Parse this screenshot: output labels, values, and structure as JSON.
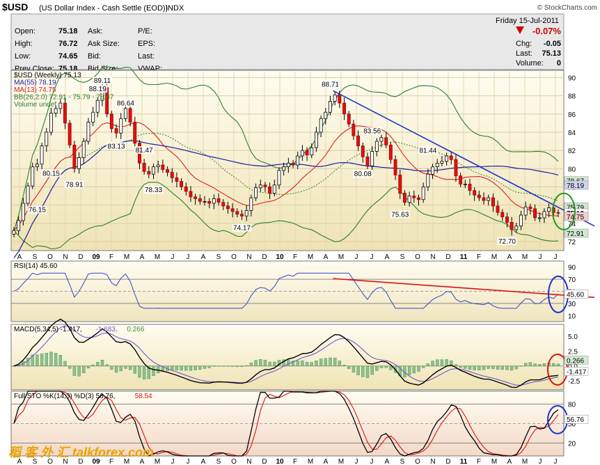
{
  "header": {
    "symbol": "$USD",
    "name": "(US Dollar Index - Cash Settle (EOD))",
    "exchange": "INDX",
    "copyright": "© StockCharts.com",
    "date": "Friday  15-Jul-2011",
    "change_pct": "-0.07%",
    "down_color": "#cc0000"
  },
  "quote": {
    "left": [
      {
        "label": "Open:",
        "value": "75.18"
      },
      {
        "label": "High:",
        "value": "76.72"
      },
      {
        "label": "Low:",
        "value": "74.65"
      },
      {
        "label": "Prev Close:",
        "value": "75.18"
      }
    ],
    "mid": [
      "Ask:",
      "Ask Size:",
      "Bid:",
      "Bid Size:"
    ],
    "right": [
      "P/E:",
      "EPS:",
      "Last:",
      "VWAP:"
    ],
    "far": [
      {
        "label": "Chg:",
        "value": "-0.05"
      },
      {
        "label": "Last:",
        "value": "75.13"
      },
      {
        "label": "Volume:",
        "value": "0"
      }
    ]
  },
  "watermark": "稻 客 外 汇  talkforex.com",
  "chart_data": [
    {
      "type": "candlestick",
      "panel": "price",
      "legend": [
        "$USD (Weekly) 75.13",
        "MA(55) 78.19",
        "MA(13) 74.75",
        "BB(26,2.0) 72.91 - 75.79 - 78.67",
        "Volume undef"
      ],
      "series_colors": {
        "MA(55)": "#1a1aa8",
        "MA(13)": "#dd2020",
        "BB": "#2e7d2e",
        "trendline": "#1a33cc"
      },
      "x_ticks": [
        "A",
        "S",
        "O",
        "N",
        "D",
        "09",
        "F",
        "M",
        "A",
        "M",
        "J",
        "J",
        "A",
        "S",
        "O",
        "N",
        "D",
        "10",
        "F",
        "M",
        "A",
        "M",
        "J",
        "J",
        "A",
        "S",
        "O",
        "N",
        "D",
        "11",
        "F",
        "M",
        "A",
        "M",
        "J",
        "J"
      ],
      "y_ticks": [
        72,
        74,
        76,
        78,
        80,
        82,
        84,
        86,
        88,
        90
      ],
      "ylim": [
        71,
        90.8
      ],
      "close": [
        73.2,
        74.3,
        76.2,
        78.1,
        80.2,
        80.5,
        82.5,
        84.0,
        86.1,
        86.6,
        87.2,
        85.0,
        82.6,
        80.0,
        81.2,
        83.0,
        85.1,
        86.2,
        87.5,
        88.9,
        86.0,
        84.4,
        83.9,
        85.5,
        86.6,
        85.1,
        82.8,
        80.6,
        79.7,
        79.4,
        80.2,
        80.4,
        79.9,
        79.6,
        79.0,
        78.6,
        78.0,
        77.5,
        76.9,
        76.7,
        76.4,
        76.4,
        76.2,
        76.7,
        76.3,
        75.9,
        75.6,
        75.3,
        75.0,
        74.8,
        75.4,
        76.8,
        77.9,
        78.2,
        78.0,
        77.3,
        78.2,
        79.8,
        80.2,
        80.6,
        80.4,
        81.4,
        82.0,
        81.5,
        82.3,
        84.0,
        85.5,
        86.2,
        87.4,
        88.1,
        87.2,
        86.0,
        84.9,
        83.6,
        82.5,
        81.3,
        80.3,
        81.9,
        83.0,
        83.4,
        82.6,
        81.0,
        79.3,
        77.3,
        76.3,
        77.0,
        76.8,
        76.6,
        78.0,
        79.4,
        80.2,
        80.6,
        80.8,
        81.4,
        81.0,
        79.2,
        78.3,
        78.3,
        77.6,
        77.1,
        76.8,
        76.5,
        76.8,
        75.9,
        75.2,
        74.7,
        74.1,
        73.3,
        73.7,
        74.9,
        75.8,
        75.6,
        74.6,
        74.6,
        75.3,
        75.7,
        75.18,
        75.13
      ],
      "labels": [
        {
          "text": "89.11",
          "bar": 19,
          "value": 89.11
        },
        {
          "text": "88.19",
          "bar": 18,
          "value": 88.19
        },
        {
          "text": "86.64",
          "bar": 24,
          "value": 86.64
        },
        {
          "text": "83.13",
          "bar": 22,
          "value": 83.13
        },
        {
          "text": "81.47",
          "bar": 28,
          "value": 81.47
        },
        {
          "text": "80.15",
          "bar": 8,
          "value": 80.15
        },
        {
          "text": "78.91",
          "bar": 13,
          "value": 78.91
        },
        {
          "text": "78.33",
          "bar": 30,
          "value": 78.33
        },
        {
          "text": "76.15",
          "bar": 5,
          "value": 76.15
        },
        {
          "text": "74.17",
          "bar": 49,
          "value": 74.17
        },
        {
          "text": "88.71",
          "bar": 68,
          "value": 88.71
        },
        {
          "text": "83.56",
          "bar": 77,
          "value": 83.56
        },
        {
          "text": "80.08",
          "bar": 75,
          "value": 80.08
        },
        {
          "text": "81.44",
          "bar": 89,
          "value": 81.44
        },
        {
          "text": "75.63",
          "bar": 83,
          "value": 75.63
        },
        {
          "text": "72.70",
          "bar": 106,
          "value": 72.7
        }
      ],
      "right_labels": [
        {
          "text": "78.67",
          "value": 78.67,
          "bg": "#cfe8cf"
        },
        {
          "text": "78.19",
          "value": 78.19,
          "bg": "#d0d4f0"
        },
        {
          "text": "75.79",
          "value": 75.79,
          "bg": "#cfe8cf"
        },
        {
          "text": "75.13",
          "value": 75.13,
          "bg": "#ffffff"
        },
        {
          "text": "74.75",
          "value": 74.75,
          "bg": "#f4cfcf"
        },
        {
          "text": "72.91",
          "value": 72.91,
          "bg": "#cfe8cf"
        }
      ]
    },
    {
      "type": "line",
      "panel": "rsi",
      "legend": "RSI(14) 45.60",
      "y_ticks": [
        10,
        30,
        50,
        70,
        90
      ],
      "ylim": [
        0,
        100
      ],
      "last_value": "45.60"
    },
    {
      "type": "line",
      "panel": "macd",
      "legend": [
        "MACD(5,34,5) -1.417, ",
        "-1.683, ",
        "0.266"
      ],
      "y_ticks": [
        -2.5,
        0,
        2.5,
        5
      ],
      "y_tick_labels": [
        "-2.5",
        "0.0",
        "2.5",
        "5.0"
      ],
      "ylim": [
        -4,
        7
      ],
      "right_labels": [
        "0.266",
        "-1.417"
      ]
    },
    {
      "type": "line",
      "panel": "stoch",
      "legend": [
        "Full STO %K(14,3) %D(3) 56.76, ",
        "58.54"
      ],
      "y_ticks": [
        20,
        50,
        80
      ],
      "ylim": [
        0,
        100
      ],
      "right_label": "56.76"
    }
  ]
}
